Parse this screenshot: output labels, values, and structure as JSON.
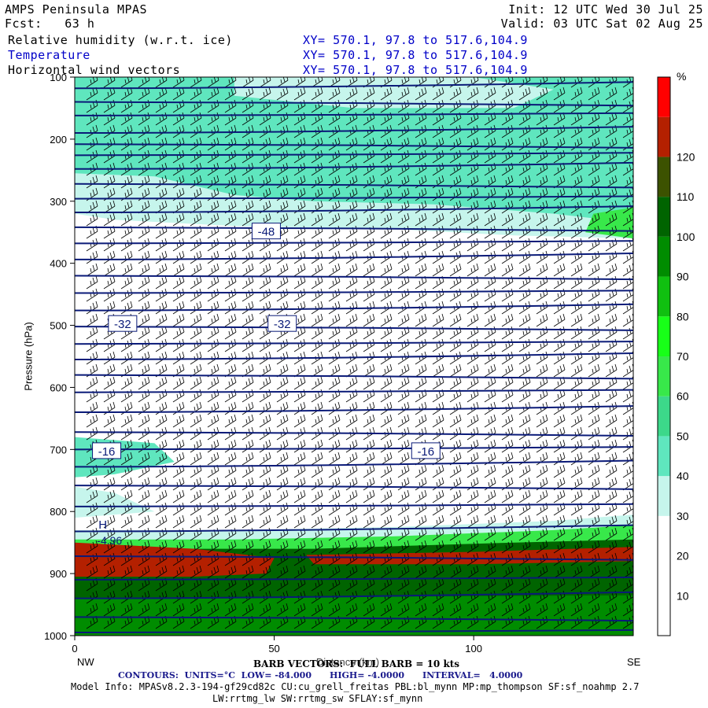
{
  "header": {
    "title_left": "AMPS Peninsula MPAS",
    "init": "Init: 12 UTC Wed 30 Jul 25",
    "fcst": "Fcst:   63 h",
    "valid": "Valid: 03 UTC Sat 02 Aug 25",
    "fields": [
      {
        "name": "Relative humidity (w.r.t. ice)",
        "xy": "XY= 570.1, 97.8 to 517.6,104.9"
      },
      {
        "name": "Temperature",
        "xy": "XY= 570.1, 97.8 to 517.6,104.9"
      },
      {
        "name": "Horizontal wind vectors",
        "xy": "XY= 570.1, 97.8 to 517.6,104.9"
      }
    ]
  },
  "chart_data": {
    "type": "heatmap",
    "ylabel": "Pressure (hPa)",
    "xlabel": "Distance (km)",
    "x_end_labels": {
      "left": "NW",
      "right": "SE"
    },
    "xlim": [
      0,
      140
    ],
    "xticks": [
      0,
      50,
      100
    ],
    "ylim": [
      1000,
      100
    ],
    "yticks": [
      100,
      200,
      300,
      400,
      500,
      600,
      700,
      800,
      900,
      1000
    ],
    "colorbar": {
      "unit": "%",
      "levels": [
        10,
        20,
        30,
        40,
        50,
        60,
        70,
        80,
        90,
        100,
        110,
        120
      ],
      "colors": [
        "#ffffff",
        "#ffffff",
        "#ffffff",
        "#c6f5ec",
        "#5fe6be",
        "#3cd88a",
        "#38e84a",
        "#18ff18",
        "#10c010",
        "#008c00",
        "#006400",
        "#3c5200",
        "#b42000",
        "#ff0000"
      ]
    },
    "temperature_contour_labels": [
      {
        "label": "-48",
        "x": 48,
        "p": 348
      },
      {
        "label": "-32",
        "x": 12,
        "p": 497
      },
      {
        "label": "-32",
        "x": 52,
        "p": 497
      },
      {
        "label": "-16",
        "x": 8,
        "p": 702
      },
      {
        "label": "-16",
        "x": 88,
        "p": 702
      }
    ],
    "high_marker": {
      "label": "H",
      "value": "-4.96",
      "x": 4,
      "p": 820
    },
    "contour_info": {
      "units": "°C",
      "low": -84.0,
      "high": -4.0,
      "interval": 4.0
    }
  },
  "footer": {
    "barb": "BARB VECTORS:  FULL BARB = 10 kts",
    "contours": "CONTOURS:  UNITS=°C  LOW= -84.000      HIGH= -4.0000      INTERVAL=   4.0000",
    "model1": "Model Info: MPASv8.2.3-194-gf29cd82c CU:cu_grell_freitas PBL:bl_mynn MP:mp_thompson SF:sf_noahmp 2.7",
    "model2": "LW:rrtmg_lw SW:rrtmg_sw SFLAY:sf_mynn"
  }
}
